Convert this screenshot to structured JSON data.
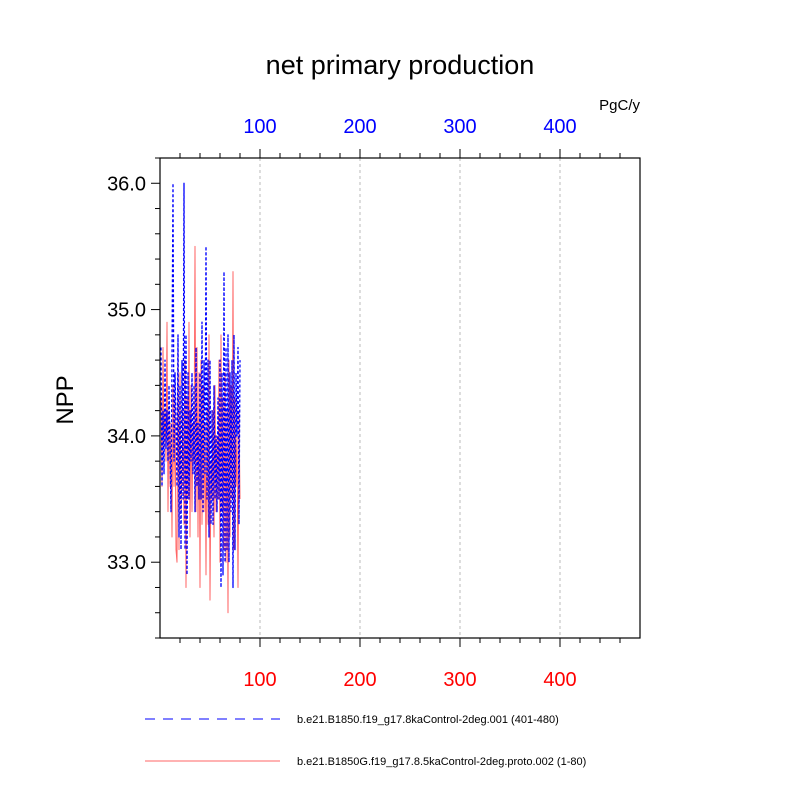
{
  "chart_data": {
    "type": "line",
    "title": "net primary production",
    "ylabel": "NPP",
    "units": "PgC/y",
    "xlim": [
      0,
      480
    ],
    "ylim": [
      32.4,
      36.2
    ],
    "x_ticks": [
      "100",
      "200",
      "300",
      "400"
    ],
    "y_ticks": [
      "33.0",
      "34.0",
      "35.0",
      "36.0"
    ],
    "grid": "vertical dashed",
    "top_axis_color": "#0000ff",
    "bottom_axis_color": "#ff0000",
    "legend_position": "bottom",
    "series": [
      {
        "name": "b.e21.B1850.f19_g17.8kaControl-2deg.001 (401-480)",
        "color": "#0000ff",
        "dash": "dashed",
        "x": [
          1,
          2,
          3,
          4,
          5,
          6,
          7,
          8,
          9,
          10,
          11,
          12,
          13,
          14,
          15,
          16,
          17,
          18,
          19,
          20,
          21,
          22,
          23,
          24,
          25,
          26,
          27,
          28,
          29,
          30,
          31,
          32,
          33,
          34,
          35,
          36,
          37,
          38,
          39,
          40,
          41,
          42,
          43,
          44,
          45,
          46,
          47,
          48,
          49,
          50,
          51,
          52,
          53,
          54,
          55,
          56,
          57,
          58,
          59,
          60,
          61,
          62,
          63,
          64,
          65,
          66,
          67,
          68,
          69,
          70,
          71,
          72,
          73,
          74,
          75,
          76,
          77,
          78,
          79,
          80
        ],
        "values": [
          34.7,
          33.6,
          34.2,
          33.7,
          34.6,
          33.9,
          34.2,
          33.8,
          34.4,
          33.9,
          33.4,
          34.6,
          36.0,
          33.8,
          34.5,
          34.1,
          33.6,
          34.8,
          33.2,
          34.4,
          33.1,
          34.6,
          33.5,
          36.0,
          33.1,
          34.8,
          32.9,
          34.5,
          33.5,
          34.2,
          33.8,
          34.5,
          33.7,
          34.4,
          33.4,
          34.7,
          33.6,
          34.1,
          33.5,
          34.5,
          33.5,
          34.9,
          33.4,
          34.6,
          33.7,
          35.5,
          33.5,
          34.6,
          33.2,
          34.6,
          33.3,
          34.2,
          33.3,
          34.4,
          33.5,
          34.0,
          33.4,
          34.3,
          33.5,
          34.6,
          32.8,
          34.5,
          32.9,
          35.3,
          33.0,
          34.7,
          33.1,
          34.8,
          33.0,
          34.5,
          33.4,
          34.6,
          32.8,
          34.8,
          33.1,
          34.5,
          34.0,
          34.7,
          33.3,
          34.6
        ]
      },
      {
        "name": "b.e21.B1850G.f19_g17.8.5kaControl-2deg.proto.002 (1-80)",
        "color": "#ff6666",
        "dash": "solid",
        "x": [
          1,
          2,
          3,
          4,
          5,
          6,
          7,
          8,
          9,
          10,
          11,
          12,
          13,
          14,
          15,
          16,
          17,
          18,
          19,
          20,
          21,
          22,
          23,
          24,
          25,
          26,
          27,
          28,
          29,
          30,
          31,
          32,
          33,
          34,
          35,
          36,
          37,
          38,
          39,
          40,
          41,
          42,
          43,
          44,
          45,
          46,
          47,
          48,
          49,
          50,
          51,
          52,
          53,
          54,
          55,
          56,
          57,
          58,
          59,
          60,
          61,
          62,
          63,
          64,
          65,
          66,
          67,
          68,
          69,
          70,
          71,
          72,
          73,
          74,
          75,
          76,
          77,
          78,
          79,
          80
        ],
        "values": [
          34.3,
          33.6,
          34.7,
          33.9,
          34.2,
          33.8,
          34.9,
          33.4,
          34.2,
          33.6,
          34.1,
          33.2,
          34.4,
          33.6,
          34.3,
          33.1,
          33.0,
          34.7,
          33.1,
          34.5,
          33.4,
          33.7,
          34.2,
          33.3,
          34.6,
          32.8,
          34.3,
          33.5,
          34.9,
          33.2,
          34.4,
          33.4,
          34.1,
          33.8,
          35.5,
          33.4,
          34.7,
          33.2,
          34.5,
          32.8,
          34.6,
          33.3,
          34.4,
          33.4,
          34.1,
          32.9,
          34.2,
          33.3,
          34.8,
          32.7,
          33.8,
          33.5,
          34.2,
          33.2,
          34.4,
          33.4,
          34.0,
          33.5,
          34.6,
          33.0,
          34.8,
          33.4,
          34.3,
          33.1,
          34.5,
          33.0,
          34.2,
          32.6,
          34.6,
          33.2,
          34.4,
          33.5,
          35.3,
          33.1,
          34.3,
          33.6,
          34.0,
          32.8,
          34.2,
          33.5
        ]
      }
    ]
  }
}
